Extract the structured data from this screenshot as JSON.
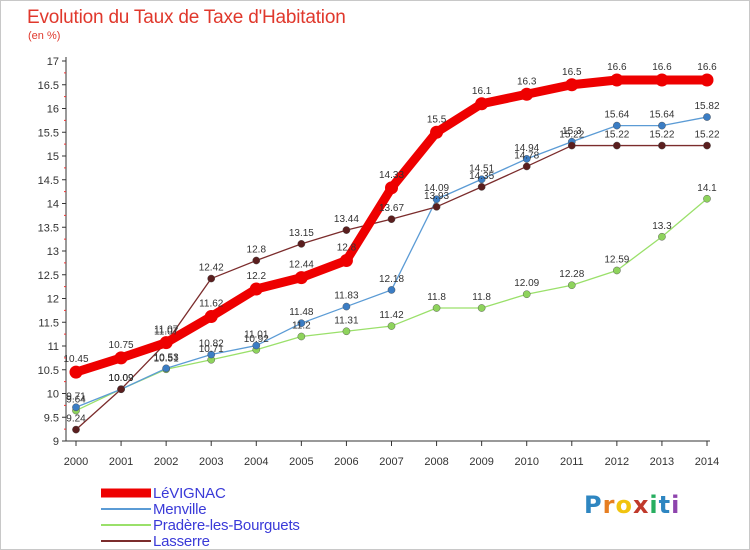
{
  "header": {
    "title": "Evolution du Taux de Taxe d'Habitation",
    "unit": "(en %)"
  },
  "logo": {
    "text": "Proxiti",
    "letters": [
      "P",
      "r",
      "o",
      "x",
      "i",
      "t",
      "i"
    ],
    "colors": [
      "#2e86c1",
      "#e67e22",
      "#f1c40f",
      "#c0392b",
      "#27ae60",
      "#2e86c1",
      "#8e44ad"
    ]
  },
  "chart_data": {
    "type": "line",
    "title": "Evolution du Taux de Taxe d'Habitation",
    "subtitle": "(en %)",
    "xlabel": "",
    "ylabel": "",
    "x": [
      2000,
      2001,
      2002,
      2003,
      2004,
      2005,
      2006,
      2007,
      2008,
      2009,
      2010,
      2011,
      2012,
      2013,
      2014
    ],
    "ylim": [
      9,
      17
    ],
    "yticks": [
      9,
      9.5,
      10,
      10.5,
      11,
      11.5,
      12,
      12.5,
      13,
      13.5,
      14,
      14.5,
      15,
      15.5,
      16,
      16.5,
      17
    ],
    "ytick_labels": [
      "9",
      "9.5",
      "10",
      "10.5",
      "11",
      "11.5",
      "12",
      "12.5",
      "13",
      "13.5",
      "14",
      "14.5",
      "15",
      "15.5",
      "16",
      "16.5",
      "17"
    ],
    "grid": false,
    "legend_position": "bottom-left",
    "series": [
      {
        "name": "LéVIGNAC",
        "color": "#ee0000",
        "values": [
          10.45,
          10.75,
          11.07,
          11.62,
          12.2,
          12.44,
          12.8,
          14.33,
          15.5,
          16.1,
          16.3,
          16.5,
          16.6,
          16.6,
          16.6
        ],
        "labels": [
          "10.45",
          "10.75",
          "11.07",
          "11.62",
          "12.2",
          "12.44",
          "12.8",
          "14.33",
          "15.5",
          "16.1",
          "16.3",
          "16.5",
          "16.6",
          "16.6",
          "16.6"
        ]
      },
      {
        "name": "Menville",
        "color": "#5b9bd5",
        "values": [
          9.71,
          10.09,
          10.53,
          10.82,
          11.01,
          11.48,
          11.83,
          12.18,
          14.09,
          14.51,
          14.94,
          15.3,
          15.64,
          15.64,
          15.82
        ],
        "labels": [
          "9.71",
          "10.09",
          "10.53",
          "10.82",
          "11.01",
          "11.48",
          "11.83",
          "12.18",
          "14.09",
          "14.51",
          "14.94",
          "15.3",
          "15.64",
          "15.64",
          "15.82"
        ]
      },
      {
        "name": "Pradère-les-Bourguets",
        "color": "#9ae06a",
        "values": [
          9.64,
          10.09,
          10.51,
          10.71,
          10.92,
          11.2,
          11.31,
          11.42,
          11.8,
          11.8,
          12.09,
          12.28,
          12.59,
          13.3,
          14.1
        ],
        "labels": [
          "9.64",
          "10.09",
          "10.51",
          "10.71",
          "10.92",
          "11.2",
          "11.31",
          "11.42",
          "11.8",
          "11.8",
          "12.09",
          "12.28",
          "12.59",
          "13.3",
          "14.1"
        ]
      },
      {
        "name": "Lasserre",
        "color": "#7b2c2c",
        "values": [
          9.24,
          10.09,
          11.07,
          12.42,
          12.8,
          13.15,
          13.44,
          13.67,
          13.93,
          14.35,
          14.78,
          15.22,
          15.22,
          15.22,
          15.22
        ],
        "labels": [
          "9.24",
          "10.09",
          "11.07",
          "12.42",
          "12.8",
          "13.15",
          "13.44",
          "13.67",
          "13.93",
          "14.35",
          "14.78",
          "15.22",
          "15.22",
          "15.22",
          "15.22"
        ]
      }
    ]
  }
}
